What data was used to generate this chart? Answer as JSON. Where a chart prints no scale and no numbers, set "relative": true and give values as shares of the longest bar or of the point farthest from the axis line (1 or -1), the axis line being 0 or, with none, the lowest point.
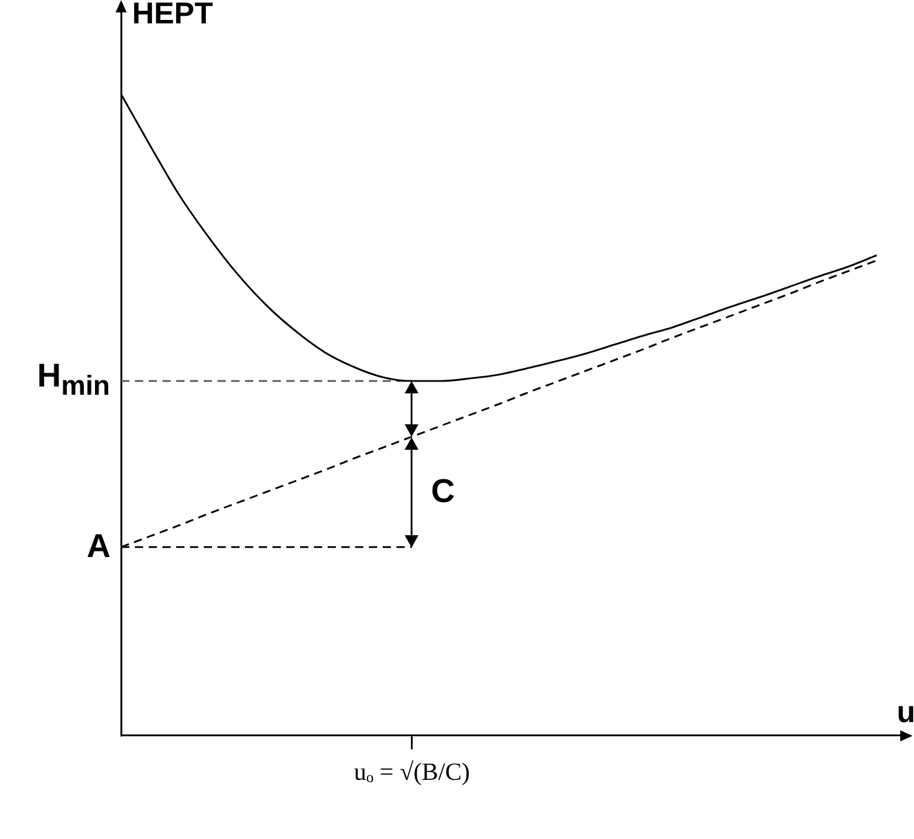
{
  "chart_data": {
    "type": "line",
    "relative": true,
    "xlabel": "u",
    "ylabel": "HEPT",
    "categories": [
      null,
      null,
      null,
      null,
      null,
      null,
      null,
      null,
      null,
      null,
      null,
      null,
      null,
      null,
      null,
      null,
      null,
      null,
      null,
      null,
      null,
      null,
      null,
      null,
      null,
      null,
      null,
      null
    ],
    "series": [
      {
        "color": "#000000",
        "line_style": "solid",
        "values": [
          1,
          0.92,
          0.843,
          0.778,
          0.72,
          0.671,
          0.631,
          0.598,
          0.575,
          0.559,
          0.553,
          0.553,
          0.557,
          0.563,
          0.573,
          0.584,
          0.596,
          0.61,
          0.624,
          0.637,
          0.653,
          0.669,
          0.684,
          0.7,
          0.716,
          0.731,
          0.749,
          null
        ]
      },
      {
        "color": "#000000",
        "line_style": "dashed",
        "values": [
          0.294,
          0.311,
          0.328,
          0.346,
          0.363,
          0.38,
          0.397,
          0.414,
          0.432,
          0.449,
          0.466,
          0.483,
          0.5,
          0.517,
          0.535,
          0.552,
          0.569,
          0.586,
          0.603,
          0.621,
          0.638,
          0.655,
          0.672,
          0.689,
          0.707,
          0.724,
          0.741,
          null
        ]
      },
      {
        "color": "#555555",
        "line_style": "dashed",
        "values": [
          0.553,
          0.553,
          0.553,
          0.553,
          0.553,
          0.553,
          0.553,
          0.553,
          0.553,
          0.553,
          0.553,
          null,
          null,
          null,
          null,
          null,
          null,
          null,
          null,
          null,
          null,
          null,
          null,
          null,
          null,
          null,
          null,
          null
        ]
      },
      {
        "color": "#000000",
        "line_style": "dashed",
        "values": [
          0.294,
          0.294,
          0.294,
          0.294,
          0.294,
          0.294,
          0.294,
          0.294,
          0.294,
          0.294,
          0.294,
          null,
          null,
          null,
          null,
          null,
          null,
          null,
          null,
          null,
          null,
          null,
          null,
          null,
          null,
          null,
          null,
          null
        ]
      }
    ],
    "annotations": [
      "H$_{min}$",
      "A",
      "C",
      "uₒ = √(B/C)"
    ],
    "marker": "none",
    "grid": false,
    "legend": false,
    "tick_labels": "x"
  }
}
